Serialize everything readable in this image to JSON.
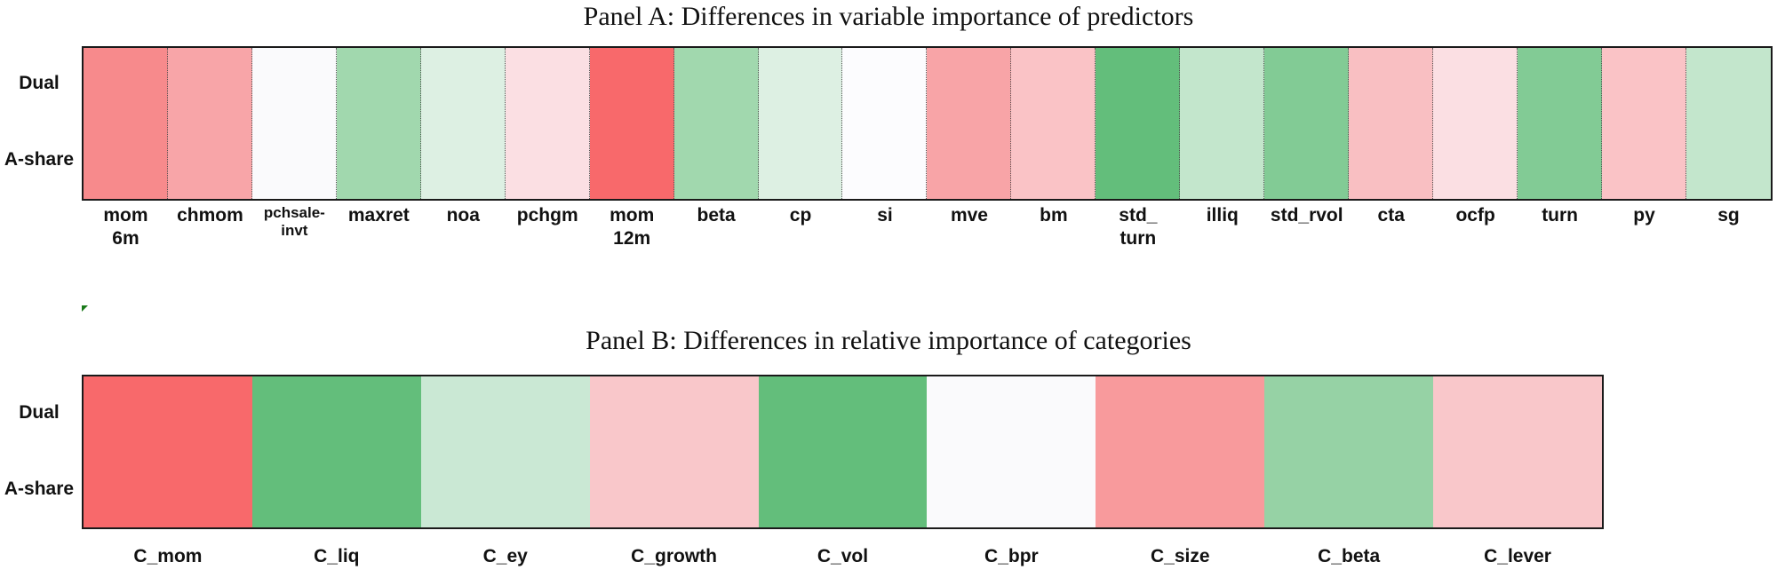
{
  "chart_data": [
    {
      "type": "heatmap",
      "title": "Panel A:  Differences in variable importance of predictors",
      "row_labels": [
        "Dual",
        "A-share"
      ],
      "categories": [
        "mom\n6m",
        "chmom",
        "pchsale-\ninvt",
        "maxret",
        "noa",
        "pchgm",
        "mom\n12m",
        "beta",
        "cp",
        "si",
        "mve",
        "bm",
        "std_\nturn",
        "illiq",
        "std_rvol",
        "cta",
        "ocfp",
        "turn",
        "py",
        "sg"
      ],
      "cell_colors": [
        "#f78a8c",
        "#f8a5a8",
        "#fafafc",
        "#a1d8ae",
        "#ddf0e3",
        "#fbdfe3",
        "#f8696b",
        "#a1d8ae",
        "#ddf0e3",
        "#fcfcfe",
        "#f8a4a7",
        "#fac3c6",
        "#63be7b",
        "#c3e6cc",
        "#82cb95",
        "#f9bfc2",
        "#fbdfe3",
        "#82cb95",
        "#fac3c6",
        "#c3e6cc"
      ],
      "dotted_separators": true
    },
    {
      "type": "heatmap",
      "title": "Panel B:  Differences in relative importance of categories",
      "row_labels": [
        "Dual",
        "A-share"
      ],
      "categories": [
        "C_mom",
        "C_liq",
        "C_ey",
        "C_growth",
        "C_vol",
        "C_bpr",
        "C_size",
        "C_beta",
        "C_lever"
      ],
      "cell_colors": [
        "#f8696b",
        "#63be7b",
        "#cae8d4",
        "#f9c7ca",
        "#63be7b",
        "#fafafc",
        "#f89a9c",
        "#96d2a5",
        "#f9c7ca"
      ],
      "dotted_separators": false
    }
  ]
}
